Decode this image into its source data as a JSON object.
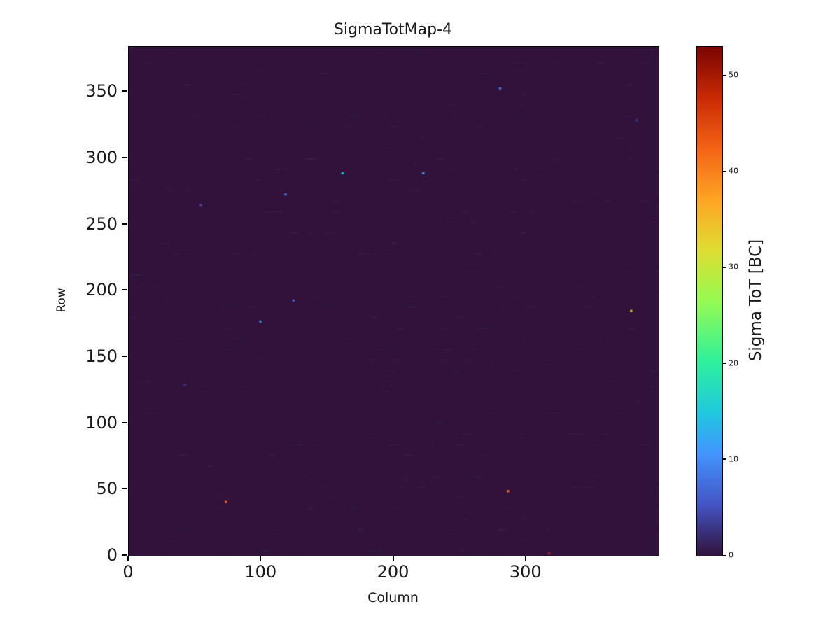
{
  "chart_data": {
    "type": "heatmap",
    "title": "SigmaTotMap-4",
    "xlabel": "Column",
    "ylabel": "Row",
    "colorbar_label": "Sigma ToT [BC]",
    "xlim": [
      0,
      400
    ],
    "ylim": [
      0,
      384
    ],
    "zlim": [
      0,
      53
    ],
    "x_ticks": [
      0,
      100,
      200,
      300
    ],
    "y_ticks": [
      0,
      50,
      100,
      150,
      200,
      250,
      300,
      350
    ],
    "colorbar_ticks": [
      0,
      10,
      20,
      30,
      40,
      50
    ],
    "grid": false,
    "legend_position": "none",
    "colormap": "turbo",
    "colormap_stops": [
      [
        0.0,
        "#30123b"
      ],
      [
        0.1,
        "#4454c4"
      ],
      [
        0.2,
        "#4294ff"
      ],
      [
        0.28,
        "#1fc8de"
      ],
      [
        0.38,
        "#2df09c"
      ],
      [
        0.5,
        "#95fb51"
      ],
      [
        0.6,
        "#dedd32"
      ],
      [
        0.7,
        "#ffa423"
      ],
      [
        0.8,
        "#f36315"
      ],
      [
        0.9,
        "#ca2a04"
      ],
      [
        1.0,
        "#7a0403"
      ]
    ],
    "background_value": 0.5,
    "background_color": "#30123b",
    "axis_color": "#000000",
    "points": [
      {
        "col": 280,
        "row": 352,
        "value": 9
      },
      {
        "col": 383,
        "row": 328,
        "value": 3
      },
      {
        "col": 161,
        "row": 288,
        "value": 15
      },
      {
        "col": 222,
        "row": 288,
        "value": 11
      },
      {
        "col": 118,
        "row": 272,
        "value": 8
      },
      {
        "col": 54,
        "row": 264,
        "value": 4
      },
      {
        "col": 124,
        "row": 192,
        "value": 7
      },
      {
        "col": 99,
        "row": 176,
        "value": 9
      },
      {
        "col": 379,
        "row": 184,
        "value": 33
      },
      {
        "col": 42,
        "row": 128,
        "value": 3
      },
      {
        "col": 286,
        "row": 48,
        "value": 41
      },
      {
        "col": 73,
        "row": 40,
        "value": 44
      },
      {
        "col": 317,
        "row": 1,
        "value": 48
      }
    ]
  }
}
